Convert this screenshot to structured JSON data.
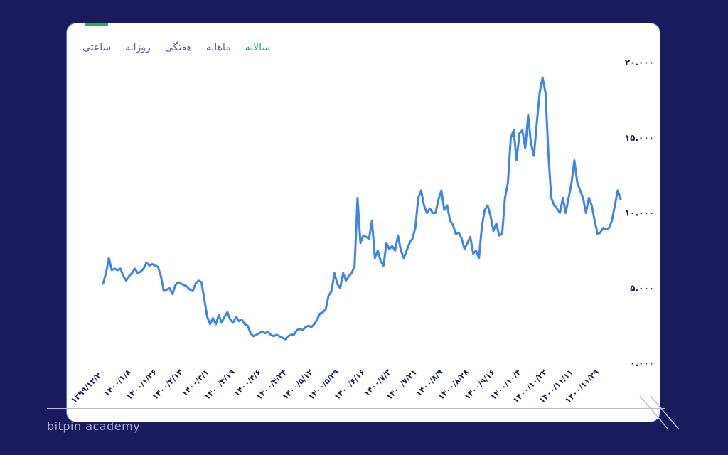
{
  "tabs": {
    "items": [
      {
        "id": "hourly",
        "label": "ساعتی"
      },
      {
        "id": "daily",
        "label": "روزانه"
      },
      {
        "id": "weekly",
        "label": "هفتگی"
      },
      {
        "id": "monthly",
        "label": "ماهانه"
      },
      {
        "id": "yearly",
        "label": "سالانه"
      }
    ],
    "active": "yearly"
  },
  "colors": {
    "line": "#3d86e8",
    "active_tab": "#27ae60",
    "tab": "#5b5f9a",
    "background": "#1a1b5f"
  },
  "watermark": "bitpin academy",
  "chart_data": {
    "type": "line",
    "title": "",
    "xlabel": "",
    "ylabel": "",
    "ylim": [
      0,
      20000
    ],
    "yticks": [
      0,
      5000,
      10000,
      15000,
      20000
    ],
    "ytick_labels": [
      "۰.۰۰۰",
      "۵.۰۰۰",
      "۱۰.۰۰۰",
      "۱۵.۰۰۰",
      "۲۰.۰۰۰"
    ],
    "x_tick_labels": [
      "۱۳۹۹/۱۲/۲۰",
      "۱۴۰۰/۱/۸",
      "۱۴۰۰/۱/۲۶",
      "۱۴۰۰/۲/۱۳",
      "۱۴۰۰/۳/۱",
      "۱۴۰۰/۳/۱۹",
      "۱۴۰۰/۴/۶",
      "۱۴۰۰/۴/۲۴",
      "۱۴۰۰/۵/۱۲",
      "۱۴۰۰/۵/۲۹",
      "۱۴۰۰/۶/۱۶",
      "۱۴۰۰/۷/۳",
      "۱۴۰۰/۷/۲۱",
      "۱۴۰۰/۸/۹",
      "۱۴۰۰/۸/۲۸",
      "۱۴۰۰/۹/۱۶",
      "۱۴۰۰/۱۰/۴",
      "۱۴۰۰/۱۰/۲۲",
      "۱۴۰۰/۱۱/۱۱",
      "۱۴۰۰/۱۱/۲۹"
    ],
    "grid": false,
    "legend": "none",
    "series": [
      {
        "values": [
          5300,
          6000,
          7000,
          6200,
          6300,
          6200,
          6300,
          5800,
          5500,
          5800,
          6000,
          6300,
          6000,
          6100,
          6300,
          6700,
          6500,
          6600,
          6500,
          6400,
          5800,
          4800,
          4900,
          5000,
          4600,
          5200,
          5400,
          5300,
          5200,
          5100,
          4900,
          4800,
          5300,
          5500,
          5400,
          4300,
          3100,
          2600,
          3000,
          2600,
          3200,
          2700,
          3100,
          3400,
          2900,
          2700,
          3100,
          2800,
          2900,
          2600,
          2500,
          2000,
          1800,
          1900,
          2000,
          2100,
          2000,
          2100,
          1900,
          1800,
          1900,
          1800,
          1700,
          1600,
          1800,
          1900,
          1900,
          2200,
          2300,
          2200,
          2400,
          2500,
          2400,
          2600,
          2900,
          3300,
          3400,
          3600,
          4500,
          4800,
          6000,
          5300,
          5000,
          6000,
          5500,
          5800,
          6000,
          6500,
          11000,
          8000,
          8500,
          8400,
          8300,
          9500,
          7000,
          7500,
          6800,
          6500,
          8000,
          7600,
          7800,
          7500,
          8500,
          7500,
          7000,
          7500,
          8000,
          8300,
          9000,
          11000,
          11500,
          10500,
          10000,
          10300,
          10000,
          10000,
          10900,
          11500,
          10200,
          10500,
          9500,
          9200,
          8600,
          8700,
          8300,
          7600,
          8000,
          8400,
          7300,
          7500,
          7000,
          9100,
          10200,
          10500,
          9800,
          8800,
          9300,
          8500,
          8600,
          11000,
          12000,
          15000,
          15500,
          13500,
          15300,
          15500,
          14300,
          16500,
          14600,
          13800,
          16000,
          18000,
          19000,
          18000,
          14000,
          11000,
          10500,
          10300,
          10000,
          11000,
          10000,
          11000,
          12000,
          13500,
          12000,
          11500,
          11000,
          10000,
          11000,
          10500,
          9500,
          8600,
          8700,
          9000,
          8900,
          9000,
          9500,
          10500,
          11500,
          10900
        ]
      }
    ]
  }
}
